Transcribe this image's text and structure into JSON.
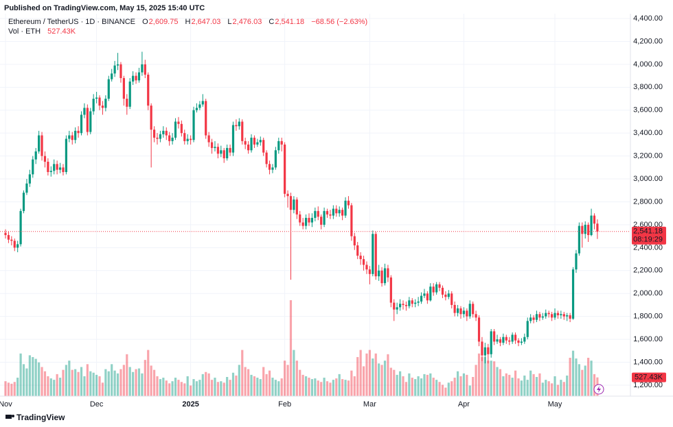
{
  "chart_data": {
    "type": "candlestick",
    "published": "Published on TradingView.com, May 15, 2025 15:40 UTC",
    "header": {
      "symbol": "Ethereum / TetherUS · 1D · BINANCE",
      "o": "O",
      "open": "2,609.75",
      "h": "H",
      "high": "2,647.03",
      "l": "L",
      "low": "2,476.03",
      "c": "C",
      "close": "2,541.18",
      "change": "−68.56 (−2.63%)",
      "vol": "Vol · ETH",
      "volume": "527.43K"
    },
    "last_price_label": "2,541.18",
    "countdown": "08:19:29",
    "volume_label": "527.43K",
    "brand": "TradingView",
    "up_color": "#089981",
    "down_color": "#f23645",
    "grid": true,
    "ylim": [
      1104,
      4442
    ],
    "yticks": [
      {
        "value": 1200,
        "label": "1,200.00"
      },
      {
        "value": 1400,
        "label": "1,400.00"
      },
      {
        "value": 1600,
        "label": "1,600.00"
      },
      {
        "value": 1800,
        "label": "1,800.00"
      },
      {
        "value": 2000,
        "label": "2,000.00"
      },
      {
        "value": 2200,
        "label": "2,200.00"
      },
      {
        "value": 2400,
        "label": "2,400.00"
      },
      {
        "value": 2600,
        "label": "2,600.00"
      },
      {
        "value": 2800,
        "label": "2,800.00"
      },
      {
        "value": 3000,
        "label": "3,000.00"
      },
      {
        "value": 3200,
        "label": "3,200.00"
      },
      {
        "value": 3400,
        "label": "3,400.00"
      },
      {
        "value": 3600,
        "label": "3,600.00"
      },
      {
        "value": 3800,
        "label": "3,800.00"
      },
      {
        "value": 4000,
        "label": "4,000.00"
      },
      {
        "value": 4200,
        "label": "4,200.00"
      },
      {
        "value": 4400,
        "label": "4,400.00"
      }
    ],
    "xticks": [
      {
        "value": 0,
        "label": "Nov"
      },
      {
        "value": 30,
        "label": "Dec"
      },
      {
        "value": 61,
        "label": "2025"
      },
      {
        "value": 92,
        "label": "Feb"
      },
      {
        "value": 120,
        "label": "Mar"
      },
      {
        "value": 151,
        "label": "Apr"
      },
      {
        "value": 181,
        "label": "May"
      }
    ],
    "open": [
      2530,
      2510,
      2470,
      2460,
      2400,
      2430,
      2720,
      2880,
      2960,
      3040,
      3170,
      3240,
      3380,
      3200,
      3150,
      3060,
      3070,
      3130,
      3080,
      3100,
      3060,
      3350,
      3380,
      3340,
      3420,
      3400,
      3560,
      3620,
      3410,
      3590,
      3700,
      3710,
      3640,
      3620,
      3700,
      3870,
      3920,
      3990,
      4000,
      3880,
      3700,
      3630,
      3850,
      3900,
      3860,
      3930,
      4000,
      3910,
      3640,
      3430,
      3360,
      3350,
      3390,
      3420,
      3380,
      3330,
      3360,
      3500,
      3480,
      3400,
      3330,
      3350,
      3340,
      3600,
      3620,
      3650,
      3680,
      3380,
      3320,
      3270,
      3280,
      3220,
      3250,
      3180,
      3270,
      3230,
      3470,
      3460,
      3500,
      3330,
      3300,
      3250,
      3360,
      3300,
      3320,
      3340,
      3230,
      3130,
      3080,
      3100,
      3250,
      3330,
      3300,
      2870,
      2850,
      2730,
      2820,
      2690,
      2620,
      2590,
      2660,
      2620,
      2660,
      2720,
      2670,
      2600,
      2720,
      2690,
      2680,
      2740,
      2700,
      2730,
      2680,
      2810,
      2770,
      2500,
      2420,
      2330,
      2300,
      2250,
      2210,
      2170,
      2520,
      2150,
      2200,
      2090,
      2220,
      2140,
      1920,
      1860,
      1880,
      1910,
      1900,
      1890,
      1940,
      1910,
      1920,
      1930,
      1980,
      2000,
      1940,
      2060,
      2010,
      2080,
      2050,
      1990,
      1970,
      2000,
      1900,
      1830,
      1870,
      1820,
      1850,
      1800,
      1910,
      1820,
      1790,
      1580,
      1460,
      1530,
      1470,
      1670,
      1580,
      1600,
      1570,
      1620,
      1590,
      1580,
      1640,
      1590,
      1570,
      1580,
      1620,
      1760,
      1790,
      1770,
      1820,
      1790,
      1800,
      1830,
      1820,
      1790,
      1830,
      1810,
      1820,
      1800,
      1810,
      1780,
      2210,
      2350,
      2590,
      2520,
      2600,
      2510,
      2680,
      2609.75
    ],
    "high": [
      2560,
      2540,
      2500,
      2480,
      2460,
      2740,
      2900,
      3000,
      3080,
      3200,
      3270,
      3420,
      3410,
      3240,
      3180,
      3110,
      3170,
      3160,
      3140,
      3130,
      3380,
      3420,
      3410,
      3450,
      3460,
      3590,
      3660,
      3650,
      3620,
      3740,
      3760,
      3730,
      3680,
      3730,
      3900,
      3960,
      4030,
      4100,
      4020,
      3900,
      3740,
      3880,
      3940,
      3930,
      3970,
      4110,
      4040,
      3930,
      3660,
      3460,
      3400,
      3420,
      3460,
      3450,
      3410,
      3400,
      3530,
      3540,
      3510,
      3430,
      3390,
      3380,
      3630,
      3660,
      3680,
      3740,
      3700,
      3410,
      3350,
      3330,
      3310,
      3290,
      3270,
      3300,
      3300,
      3500,
      3520,
      3530,
      3520,
      3360,
      3330,
      3390,
      3380,
      3350,
      3370,
      3360,
      3250,
      3160,
      3130,
      3280,
      3360,
      3360,
      3320,
      2900,
      2880,
      2850,
      2840,
      2720,
      2660,
      2690,
      2700,
      2700,
      2750,
      2760,
      2690,
      2750,
      2740,
      2730,
      2770,
      2770,
      2760,
      2750,
      2840,
      2850,
      2790,
      2530,
      2450,
      2360,
      2330,
      2280,
      2240,
      2550,
      2540,
      2250,
      2230,
      2260,
      2250,
      2160,
      1950,
      1920,
      1950,
      1940,
      1930,
      1970,
      1960,
      1950,
      1970,
      2010,
      2040,
      2020,
      2090,
      2090,
      2100,
      2100,
      2070,
      2020,
      2030,
      2020,
      1930,
      1900,
      1890,
      1880,
      1870,
      1940,
      1930,
      1850,
      1810,
      1620,
      1570,
      1560,
      1690,
      1690,
      1640,
      1620,
      1650,
      1640,
      1620,
      1660,
      1660,
      1610,
      1610,
      1650,
      1790,
      1820,
      1810,
      1850,
      1840,
      1830,
      1860,
      1850,
      1840,
      1870,
      1850,
      1850,
      1840,
      1830,
      1830,
      2230,
      2380,
      2620,
      2620,
      2630,
      2620,
      2740,
      2700,
      2647.03
    ],
    "low": [
      2480,
      2440,
      2420,
      2370,
      2360,
      2410,
      2700,
      2860,
      2930,
      3010,
      3130,
      3220,
      3160,
      3100,
      3030,
      3020,
      3040,
      3040,
      3050,
      3030,
      3040,
      3320,
      3300,
      3310,
      3360,
      3380,
      3530,
      3380,
      3390,
      3560,
      3660,
      3600,
      3560,
      3590,
      3680,
      3850,
      3890,
      3950,
      3840,
      3640,
      3560,
      3610,
      3820,
      3830,
      3840,
      3900,
      3880,
      3600,
      3100,
      3320,
      3300,
      3320,
      3360,
      3340,
      3290,
      3300,
      3340,
      3440,
      3370,
      3300,
      3300,
      3300,
      3320,
      3580,
      3600,
      3630,
      3350,
      3280,
      3220,
      3240,
      3180,
      3190,
      3140,
      3160,
      3200,
      3200,
      3420,
      3430,
      3300,
      3260,
      3220,
      3230,
      3270,
      3280,
      3290,
      3200,
      3100,
      3040,
      3050,
      3080,
      3220,
      3240,
      2840,
      2750,
      2120,
      2700,
      2650,
      2590,
      2560,
      2560,
      2590,
      2580,
      2630,
      2640,
      2560,
      2580,
      2660,
      2650,
      2650,
      2670,
      2670,
      2640,
      2660,
      2740,
      2460,
      2380,
      2300,
      2250,
      2200,
      2170,
      2080,
      2150,
      2120,
      2110,
      2060,
      2070,
      2100,
      1880,
      1760,
      1820,
      1850,
      1860,
      1850,
      1870,
      1880,
      1880,
      1890,
      1910,
      1960,
      1910,
      1930,
      1980,
      1990,
      2020,
      1960,
      1940,
      1950,
      1870,
      1800,
      1800,
      1780,
      1790,
      1760,
      1780,
      1790,
      1760,
      1540,
      1410,
      1390,
      1390,
      1440,
      1550,
      1560,
      1540,
      1550,
      1560,
      1550,
      1560,
      1560,
      1540,
      1550,
      1560,
      1600,
      1740,
      1740,
      1750,
      1760,
      1770,
      1780,
      1790,
      1760,
      1770,
      1780,
      1780,
      1770,
      1760,
      1750,
      1770,
      2180,
      2330,
      2400,
      2480,
      2450,
      2500,
      2560,
      2476.03
    ],
    "close": [
      2510,
      2470,
      2460,
      2400,
      2430,
      2720,
      2880,
      2960,
      3040,
      3170,
      3240,
      3380,
      3200,
      3150,
      3060,
      3070,
      3130,
      3080,
      3100,
      3060,
      3350,
      3380,
      3340,
      3420,
      3400,
      3560,
      3620,
      3410,
      3590,
      3700,
      3710,
      3640,
      3620,
      3700,
      3870,
      3920,
      3990,
      4000,
      3880,
      3700,
      3630,
      3850,
      3900,
      3860,
      3930,
      4000,
      3910,
      3640,
      3430,
      3360,
      3350,
      3390,
      3420,
      3380,
      3330,
      3360,
      3500,
      3480,
      3400,
      3330,
      3350,
      3340,
      3600,
      3620,
      3650,
      3680,
      3380,
      3320,
      3270,
      3280,
      3220,
      3250,
      3180,
      3270,
      3230,
      3470,
      3460,
      3500,
      3330,
      3300,
      3250,
      3360,
      3300,
      3320,
      3340,
      3230,
      3130,
      3080,
      3100,
      3250,
      3330,
      3300,
      2870,
      2850,
      2730,
      2820,
      2690,
      2620,
      2590,
      2660,
      2620,
      2660,
      2720,
      2670,
      2600,
      2720,
      2690,
      2680,
      2740,
      2700,
      2730,
      2680,
      2810,
      2770,
      2500,
      2420,
      2330,
      2300,
      2250,
      2210,
      2170,
      2520,
      2150,
      2200,
      2090,
      2220,
      2140,
      1920,
      1860,
      1880,
      1910,
      1900,
      1890,
      1940,
      1910,
      1920,
      1930,
      1980,
      2000,
      1940,
      2060,
      2010,
      2080,
      2050,
      1990,
      1970,
      2000,
      1900,
      1830,
      1870,
      1820,
      1850,
      1800,
      1910,
      1820,
      1790,
      1580,
      1460,
      1530,
      1470,
      1670,
      1580,
      1600,
      1570,
      1620,
      1590,
      1580,
      1640,
      1590,
      1570,
      1580,
      1620,
      1760,
      1790,
      1770,
      1820,
      1790,
      1800,
      1830,
      1820,
      1790,
      1830,
      1810,
      1820,
      1800,
      1810,
      1780,
      2210,
      2350,
      2590,
      2520,
      2600,
      2510,
      2680,
      2609.75,
      2541.18
    ],
    "volume": [
      420000,
      380000,
      350000,
      400000,
      520000,
      1200000,
      900000,
      780000,
      1150000,
      1100000,
      1050000,
      950000,
      820000,
      700000,
      560000,
      500000,
      460000,
      620000,
      520000,
      740000,
      880000,
      1000000,
      740000,
      760000,
      680000,
      820000,
      560000,
      900000,
      700000,
      660000,
      600000,
      560000,
      380000,
      760000,
      700000,
      900000,
      720000,
      640000,
      760000,
      880000,
      1180000,
      820000,
      680000,
      760000,
      780000,
      640000,
      1020000,
      1300000,
      860000,
      740000,
      560000,
      480000,
      520000,
      440000,
      360000,
      420000,
      520000,
      460000,
      400000,
      360000,
      560000,
      300000,
      480000,
      420000,
      460000,
      620000,
      680000,
      640000,
      460000,
      520000,
      400000,
      420000,
      380000,
      540000,
      460000,
      660000,
      580000,
      880000,
      1300000,
      820000,
      760000,
      600000,
      560000,
      520000,
      480000,
      820000,
      620000,
      720000,
      520000,
      460000,
      420000,
      500000,
      1000000,
      880000,
      2700000,
      1300000,
      1000000,
      740000,
      600000,
      560000,
      520000,
      480000,
      500000,
      440000,
      400000,
      520000,
      420000,
      380000,
      460000,
      500000,
      620000,
      480000,
      460000,
      440000,
      720000,
      560000,
      1100000,
      1300000,
      840000,
      1200000,
      1300000,
      1060000,
      1200000,
      920000,
      880000,
      1000000,
      1180000,
      800000,
      740000,
      600000,
      700000,
      560000,
      400000,
      640000,
      520000,
      480000,
      560000,
      500000,
      620000,
      600000,
      640000,
      520000,
      460000,
      400000,
      320000,
      240000,
      380000,
      420000,
      520000,
      700000,
      560000,
      640000,
      600000,
      300000,
      540000,
      880000,
      1200000,
      1100000,
      1100000,
      1000000,
      1000000,
      980000,
      820000,
      760000,
      560000,
      640000,
      600000,
      520000,
      720000,
      500000,
      440000,
      580000,
      460000,
      720000,
      620000,
      540000,
      640000,
      380000,
      460000,
      420000,
      360000,
      560000,
      320000,
      460000,
      400000,
      580000,
      1080000,
      1280000,
      1060000,
      900000,
      740000,
      860000,
      1080000,
      1000000,
      620000,
      527430
    ]
  }
}
